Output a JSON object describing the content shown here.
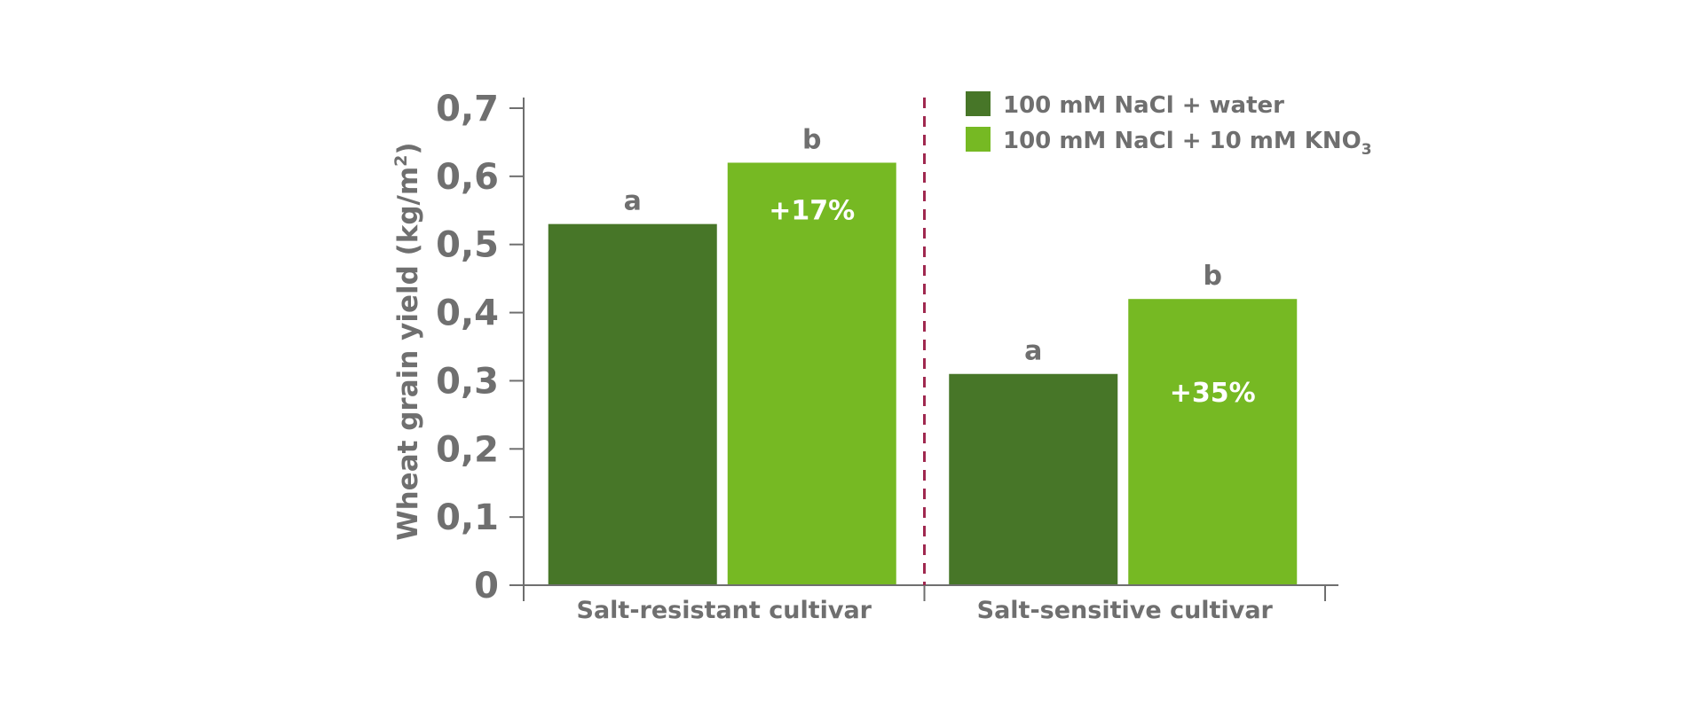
{
  "chart_data": {
    "type": "bar",
    "categories": [
      "Salt-resistant cultivar",
      "Salt-sensitive cultivar"
    ],
    "series": [
      {
        "name": "100 mM NaCl + water",
        "color": "#477628",
        "values": [
          0.53,
          0.31
        ],
        "annotations": [
          "a",
          "a"
        ]
      },
      {
        "name": "100 mM NaCl + 10 mM KNO",
        "name_subscript": "3",
        "color": "#76b923",
        "values": [
          0.62,
          0.42
        ],
        "annotations": [
          "b",
          "b"
        ],
        "inner_labels": [
          "+17%",
          "+35%"
        ]
      }
    ],
    "ylabel": "Wheat grain yield (kg/m",
    "ylabel_superscript": "2",
    "ylabel_suffix": ")",
    "ylim": [
      0,
      0.7
    ],
    "yticks": [
      "0",
      "0,1",
      "0,2",
      "0,3",
      "0,4",
      "0,5",
      "0,6",
      "0,7"
    ],
    "grid": false,
    "legend": "top-right",
    "separator": "dashed line between categories",
    "colors": {
      "axis": "#6f6f6f",
      "separator": "#a0284f",
      "text": "#6f6f6f"
    }
  }
}
